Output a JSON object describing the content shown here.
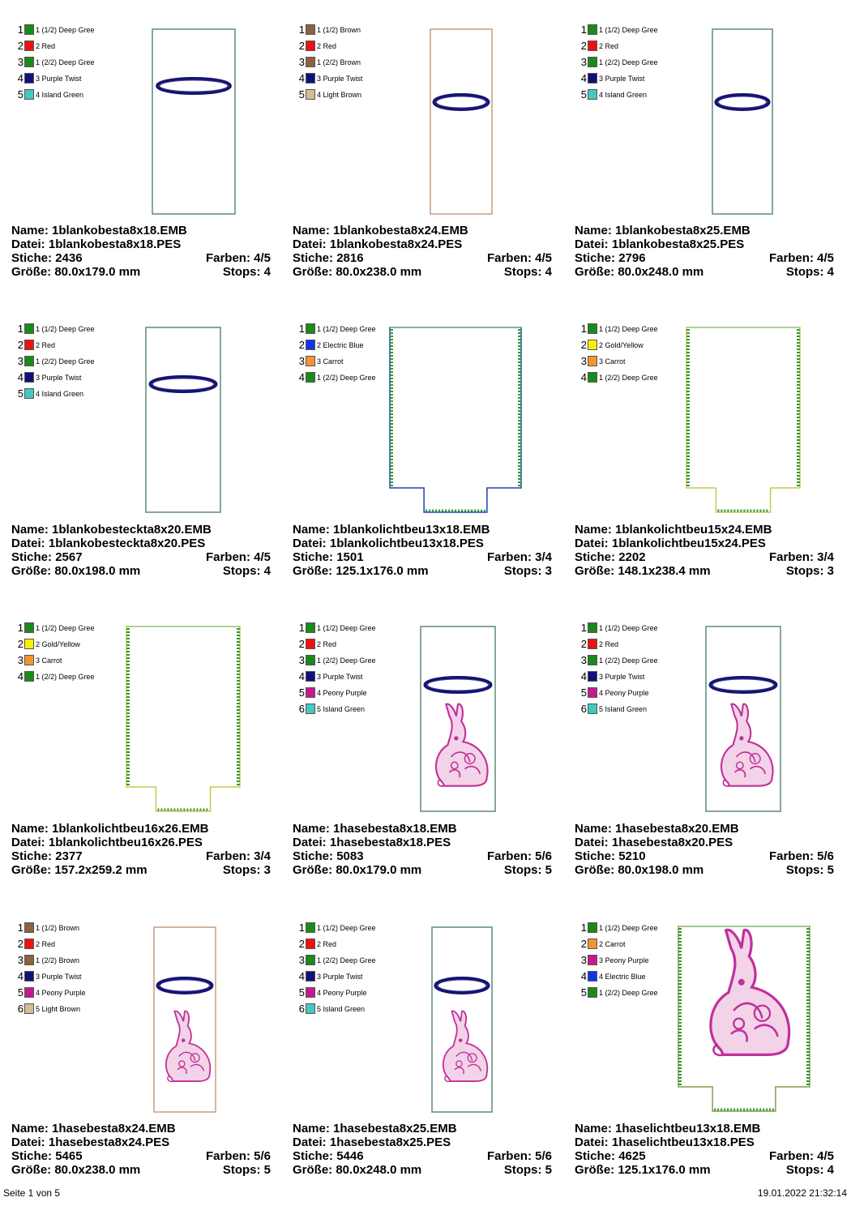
{
  "labels": {
    "name": "Name:",
    "datei": "Datei:",
    "stiche": "Stiche:",
    "farben": "Farben:",
    "groesse": "Größe:",
    "stops": "Stops:"
  },
  "footer": {
    "page": "Seite 1 von 5",
    "datetime": "19.01.2022 21:32:14"
  },
  "palette": {
    "Deep Gree": "#1a8a1a",
    "Red": "#ee1111",
    "Purple Twist": "#10107a",
    "Island Green": "#44c8c0",
    "Brown": "#8b6240",
    "Light Brown": "#d2bc92",
    "Electric Blue": "#1433ee",
    "Carrot": "#f29430",
    "Gold/Yellow": "#f8f000",
    "Peony Purple": "#c81890"
  },
  "designs": [
    {
      "name": "1blankobesta8x18.EMB",
      "datei": "1blankobesta8x18.PES",
      "stiche": "2436",
      "farben": "4/5",
      "groesse": "80.0x179.0 mm",
      "stops": "4",
      "shape": "band",
      "outline": "#5b8a80",
      "bunny": false,
      "colors": [
        {
          "n": "1",
          "c": "Deep Gree",
          "label": "1 (1/2) Deep Gree"
        },
        {
          "n": "2",
          "c": "Red",
          "label": "2 Red"
        },
        {
          "n": "3",
          "c": "Deep Gree",
          "label": "1 (2/2) Deep Gree"
        },
        {
          "n": "4",
          "c": "Purple Twist",
          "label": "3 Purple Twist"
        },
        {
          "n": "5",
          "c": "Island Green",
          "label": "4 Island Green"
        }
      ]
    },
    {
      "name": "1blankobesta8x24.EMB",
      "datei": "1blankobesta8x24.PES",
      "stiche": "2816",
      "farben": "4/5",
      "groesse": "80.0x238.0 mm",
      "stops": "4",
      "shape": "band",
      "outline": "#c89a80",
      "bunny": false,
      "colors": [
        {
          "n": "1",
          "c": "Brown",
          "label": "1 (1/2) Brown"
        },
        {
          "n": "2",
          "c": "Red",
          "label": "2 Red"
        },
        {
          "n": "3",
          "c": "Brown",
          "label": "1 (2/2) Brown"
        },
        {
          "n": "4",
          "c": "Purple Twist",
          "label": "3 Purple Twist"
        },
        {
          "n": "5",
          "c": "Light Brown",
          "label": "4 Light Brown"
        }
      ]
    },
    {
      "name": "1blankobesta8x25.EMB",
      "datei": "1blankobesta8x25.PES",
      "stiche": "2796",
      "farben": "4/5",
      "groesse": "80.0x248.0 mm",
      "stops": "4",
      "shape": "band",
      "outline": "#5b8a80",
      "bunny": false,
      "colors": [
        {
          "n": "1",
          "c": "Deep Gree",
          "label": "1 (1/2) Deep Gree"
        },
        {
          "n": "2",
          "c": "Red",
          "label": "2 Red"
        },
        {
          "n": "3",
          "c": "Deep Gree",
          "label": "1 (2/2) Deep Gree"
        },
        {
          "n": "4",
          "c": "Purple Twist",
          "label": "3 Purple Twist"
        },
        {
          "n": "5",
          "c": "Island Green",
          "label": "4 Island Green"
        }
      ]
    },
    {
      "name": "1blankobesteckta8x20.EMB",
      "datei": "1blankobesteckta8x20.PES",
      "stiche": "2567",
      "farben": "4/5",
      "groesse": "80.0x198.0 mm",
      "stops": "4",
      "shape": "band",
      "outline": "#5b8a80",
      "bunny": false,
      "colors": [
        {
          "n": "1",
          "c": "Deep Gree",
          "label": "1 (1/2) Deep Gree"
        },
        {
          "n": "2",
          "c": "Red",
          "label": "2 Red"
        },
        {
          "n": "3",
          "c": "Deep Gree",
          "label": "1 (2/2) Deep Gree"
        },
        {
          "n": "4",
          "c": "Purple Twist",
          "label": "3 Purple Twist"
        },
        {
          "n": "5",
          "c": "Island Green",
          "label": "4 Island Green"
        }
      ]
    },
    {
      "name": "1blankolichtbeu13x18.EMB",
      "datei": "1blankolichtbeu13x18.PES",
      "stiche": "1501",
      "farben": "3/4",
      "groesse": "125.1x176.0 mm",
      "stops": "3",
      "shape": "light",
      "outline": "#2040b0",
      "bunny": false,
      "colors": [
        {
          "n": "1",
          "c": "Deep Gree",
          "label": "1 (1/2) Deep Gree"
        },
        {
          "n": "2",
          "c": "Electric Blue",
          "label": "2 Electric Blue"
        },
        {
          "n": "3",
          "c": "Carrot",
          "label": "3 Carrot"
        },
        {
          "n": "4",
          "c": "Deep Gree",
          "label": "1 (2/2) Deep Gree"
        }
      ]
    },
    {
      "name": "1blankolichtbeu15x24.EMB",
      "datei": "1blankolichtbeu15x24.PES",
      "stiche": "2202",
      "farben": "3/4",
      "groesse": "148.1x238.4 mm",
      "stops": "3",
      "shape": "light",
      "outline": "#c8c850",
      "bunny": false,
      "colors": [
        {
          "n": "1",
          "c": "Deep Gree",
          "label": "1 (1/2) Deep Gree"
        },
        {
          "n": "2",
          "c": "Gold/Yellow",
          "label": "2 Gold/Yellow"
        },
        {
          "n": "3",
          "c": "Carrot",
          "label": "3 Carrot"
        },
        {
          "n": "4",
          "c": "Deep Gree",
          "label": "1 (2/2) Deep Gree"
        }
      ]
    },
    {
      "name": "1blankolichtbeu16x26.EMB",
      "datei": "1blankolichtbeu16x26.PES",
      "stiche": "2377",
      "farben": "3/4",
      "groesse": "157.2x259.2 mm",
      "stops": "3",
      "shape": "light",
      "outline": "#c8c850",
      "bunny": false,
      "colors": [
        {
          "n": "1",
          "c": "Deep Gree",
          "label": "1 (1/2) Deep Gree"
        },
        {
          "n": "2",
          "c": "Gold/Yellow",
          "label": "2 Gold/Yellow"
        },
        {
          "n": "3",
          "c": "Carrot",
          "label": "3 Carrot"
        },
        {
          "n": "4",
          "c": "Deep Gree",
          "label": "1 (2/2) Deep Gree"
        }
      ]
    },
    {
      "name": "1hasebesta8x18.EMB",
      "datei": "1hasebesta8x18.PES",
      "stiche": "5083",
      "farben": "5/6",
      "groesse": "80.0x179.0 mm",
      "stops": "5",
      "shape": "band",
      "outline": "#5b8a80",
      "bunny": true,
      "colors": [
        {
          "n": "1",
          "c": "Deep Gree",
          "label": "1 (1/2) Deep Gree"
        },
        {
          "n": "2",
          "c": "Red",
          "label": "2 Red"
        },
        {
          "n": "3",
          "c": "Deep Gree",
          "label": "1 (2/2) Deep Gree"
        },
        {
          "n": "4",
          "c": "Purple Twist",
          "label": "3 Purple Twist"
        },
        {
          "n": "5",
          "c": "Peony Purple",
          "label": "4 Peony Purple"
        },
        {
          "n": "6",
          "c": "Island Green",
          "label": "5 Island Green"
        }
      ]
    },
    {
      "name": "1hasebesta8x20.EMB",
      "datei": "1hasebesta8x20.PES",
      "stiche": "5210",
      "farben": "5/6",
      "groesse": "80.0x198.0 mm",
      "stops": "5",
      "shape": "band",
      "outline": "#5b8a80",
      "bunny": true,
      "colors": [
        {
          "n": "1",
          "c": "Deep Gree",
          "label": "1 (1/2) Deep Gree"
        },
        {
          "n": "2",
          "c": "Red",
          "label": "2 Red"
        },
        {
          "n": "3",
          "c": "Deep Gree",
          "label": "1 (2/2) Deep Gree"
        },
        {
          "n": "4",
          "c": "Purple Twist",
          "label": "3 Purple Twist"
        },
        {
          "n": "5",
          "c": "Peony Purple",
          "label": "4 Peony Purple"
        },
        {
          "n": "6",
          "c": "Island Green",
          "label": "5 Island Green"
        }
      ]
    },
    {
      "name": "1hasebesta8x24.EMB",
      "datei": "1hasebesta8x24.PES",
      "stiche": "5465",
      "farben": "5/6",
      "groesse": "80.0x238.0 mm",
      "stops": "5",
      "shape": "band",
      "outline": "#c89a80",
      "bunny": true,
      "colors": [
        {
          "n": "1",
          "c": "Brown",
          "label": "1 (1/2) Brown"
        },
        {
          "n": "2",
          "c": "Red",
          "label": "2 Red"
        },
        {
          "n": "3",
          "c": "Brown",
          "label": "1 (2/2) Brown"
        },
        {
          "n": "4",
          "c": "Purple Twist",
          "label": "3 Purple Twist"
        },
        {
          "n": "5",
          "c": "Peony Purple",
          "label": "4 Peony Purple"
        },
        {
          "n": "6",
          "c": "Light Brown",
          "label": "5 Light Brown"
        }
      ]
    },
    {
      "name": "1hasebesta8x25.EMB",
      "datei": "1hasebesta8x25.PES",
      "stiche": "5446",
      "farben": "5/6",
      "groesse": "80.0x248.0 mm",
      "stops": "5",
      "shape": "band",
      "outline": "#5b8a80",
      "bunny": true,
      "colors": [
        {
          "n": "1",
          "c": "Deep Gree",
          "label": "1 (1/2) Deep Gree"
        },
        {
          "n": "2",
          "c": "Red",
          "label": "2 Red"
        },
        {
          "n": "3",
          "c": "Deep Gree",
          "label": "1 (2/2) Deep Gree"
        },
        {
          "n": "4",
          "c": "Purple Twist",
          "label": "3 Purple Twist"
        },
        {
          "n": "5",
          "c": "Peony Purple",
          "label": "4 Peony Purple"
        },
        {
          "n": "6",
          "c": "Island Green",
          "label": "5 Island Green"
        }
      ]
    },
    {
      "name": "1haselichtbeu13x18.EMB",
      "datei": "1haselichtbeu13x18.PES",
      "stiche": "4625",
      "farben": "4/5",
      "groesse": "125.1x176.0 mm",
      "stops": "4",
      "shape": "lightbunny",
      "outline": "#8a9a50",
      "bunny": true,
      "colors": [
        {
          "n": "1",
          "c": "Deep Gree",
          "label": "1 (1/2) Deep Gree"
        },
        {
          "n": "2",
          "c": "Carrot",
          "label": "2 Carrot"
        },
        {
          "n": "3",
          "c": "Peony Purple",
          "label": "3 Peony Purple"
        },
        {
          "n": "4",
          "c": "Electric Blue",
          "label": "4 Electric Blue"
        },
        {
          "n": "5",
          "c": "Deep Gree",
          "label": "1 (2/2) Deep Gree"
        }
      ]
    }
  ]
}
